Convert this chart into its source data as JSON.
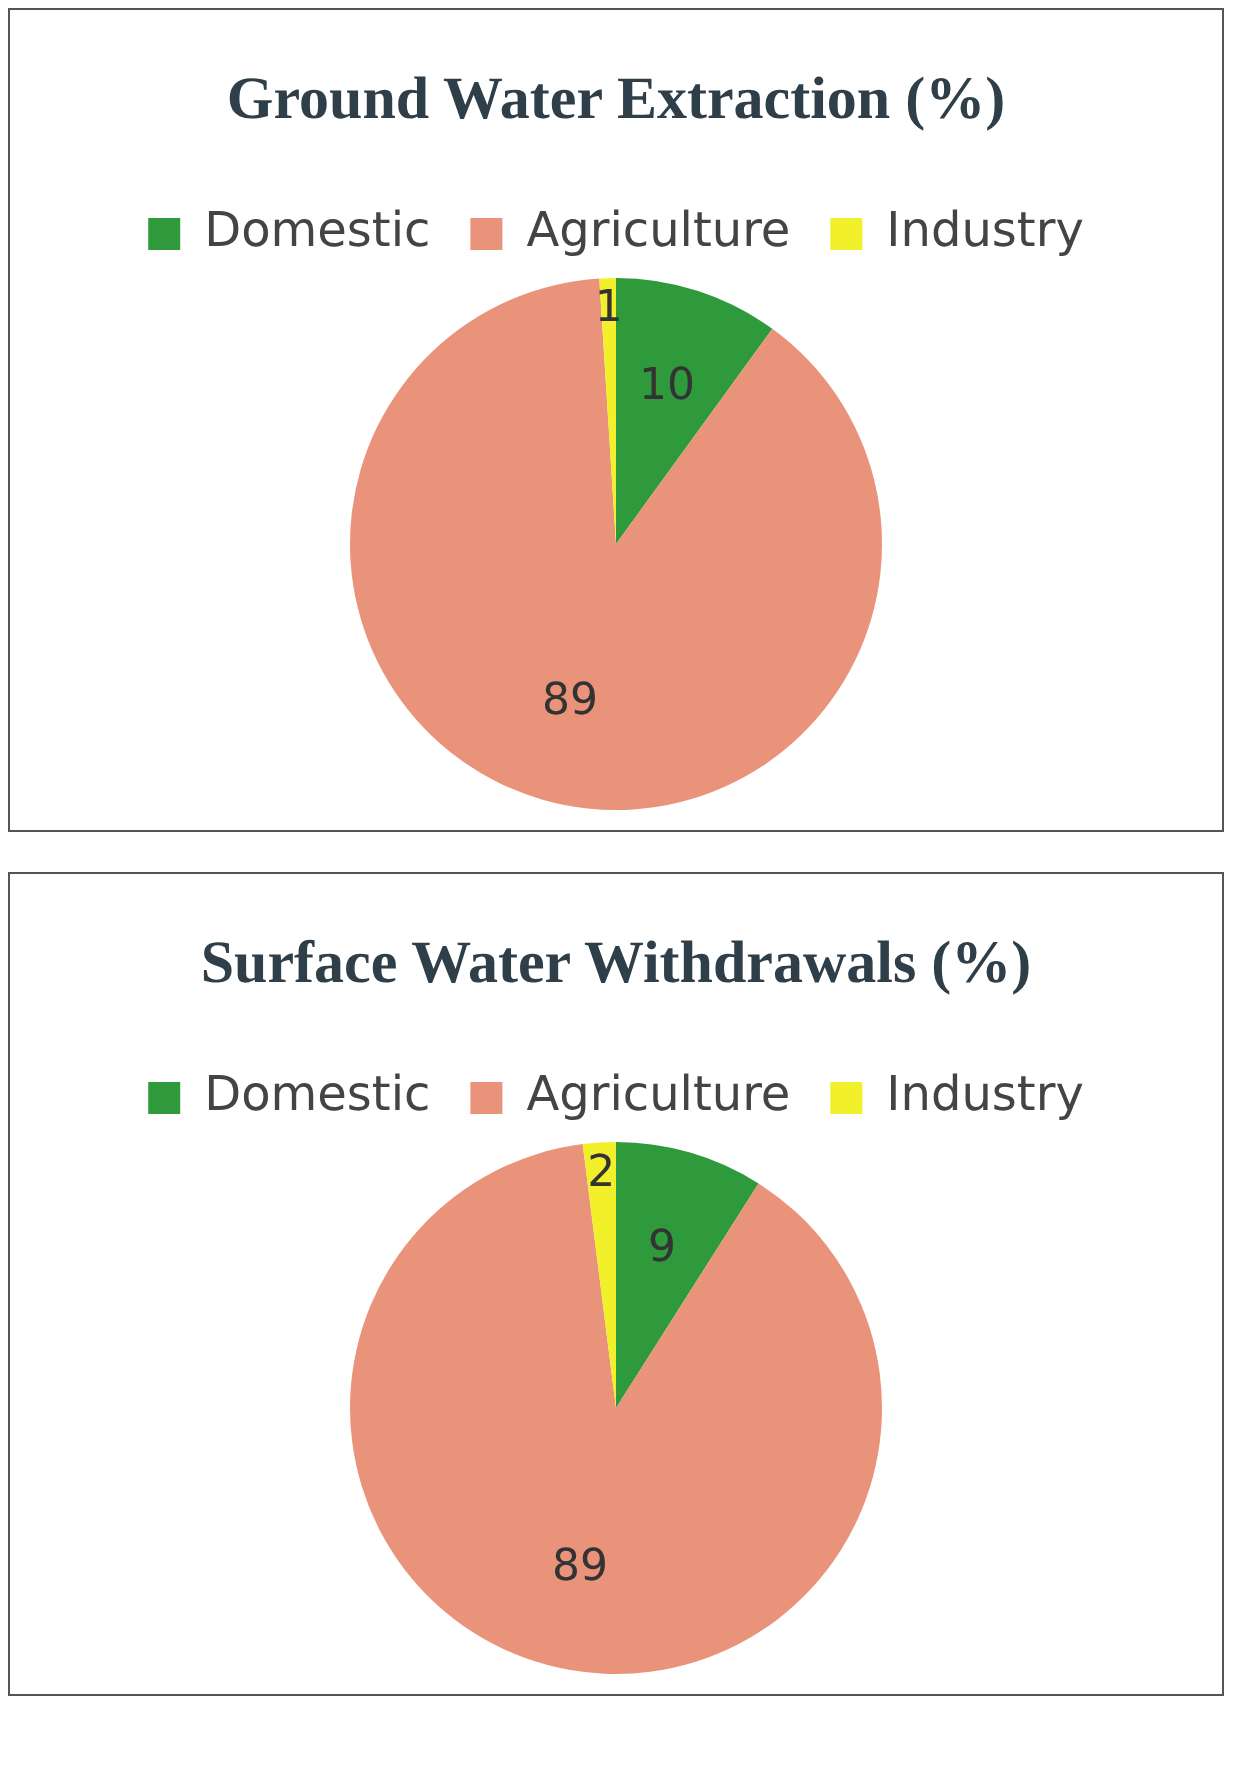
{
  "chart_data": [
    {
      "type": "pie",
      "title": "Ground Water Extraction (%)",
      "categories": [
        "Domestic",
        "Agriculture",
        "Industry"
      ],
      "values": [
        10,
        89,
        1
      ],
      "colors": [
        "#2e9a3c",
        "#e8937a",
        "#f2f02a"
      ],
      "data_labels": true,
      "legend": "top"
    },
    {
      "type": "pie",
      "title": "Surface Water Withdrawals (%)",
      "categories": [
        "Domestic",
        "Agriculture",
        "Industry"
      ],
      "values": [
        9,
        89,
        2
      ],
      "colors": [
        "#2e9a3c",
        "#e8937a",
        "#f2f02a"
      ],
      "data_labels": true,
      "legend": "top"
    }
  ]
}
